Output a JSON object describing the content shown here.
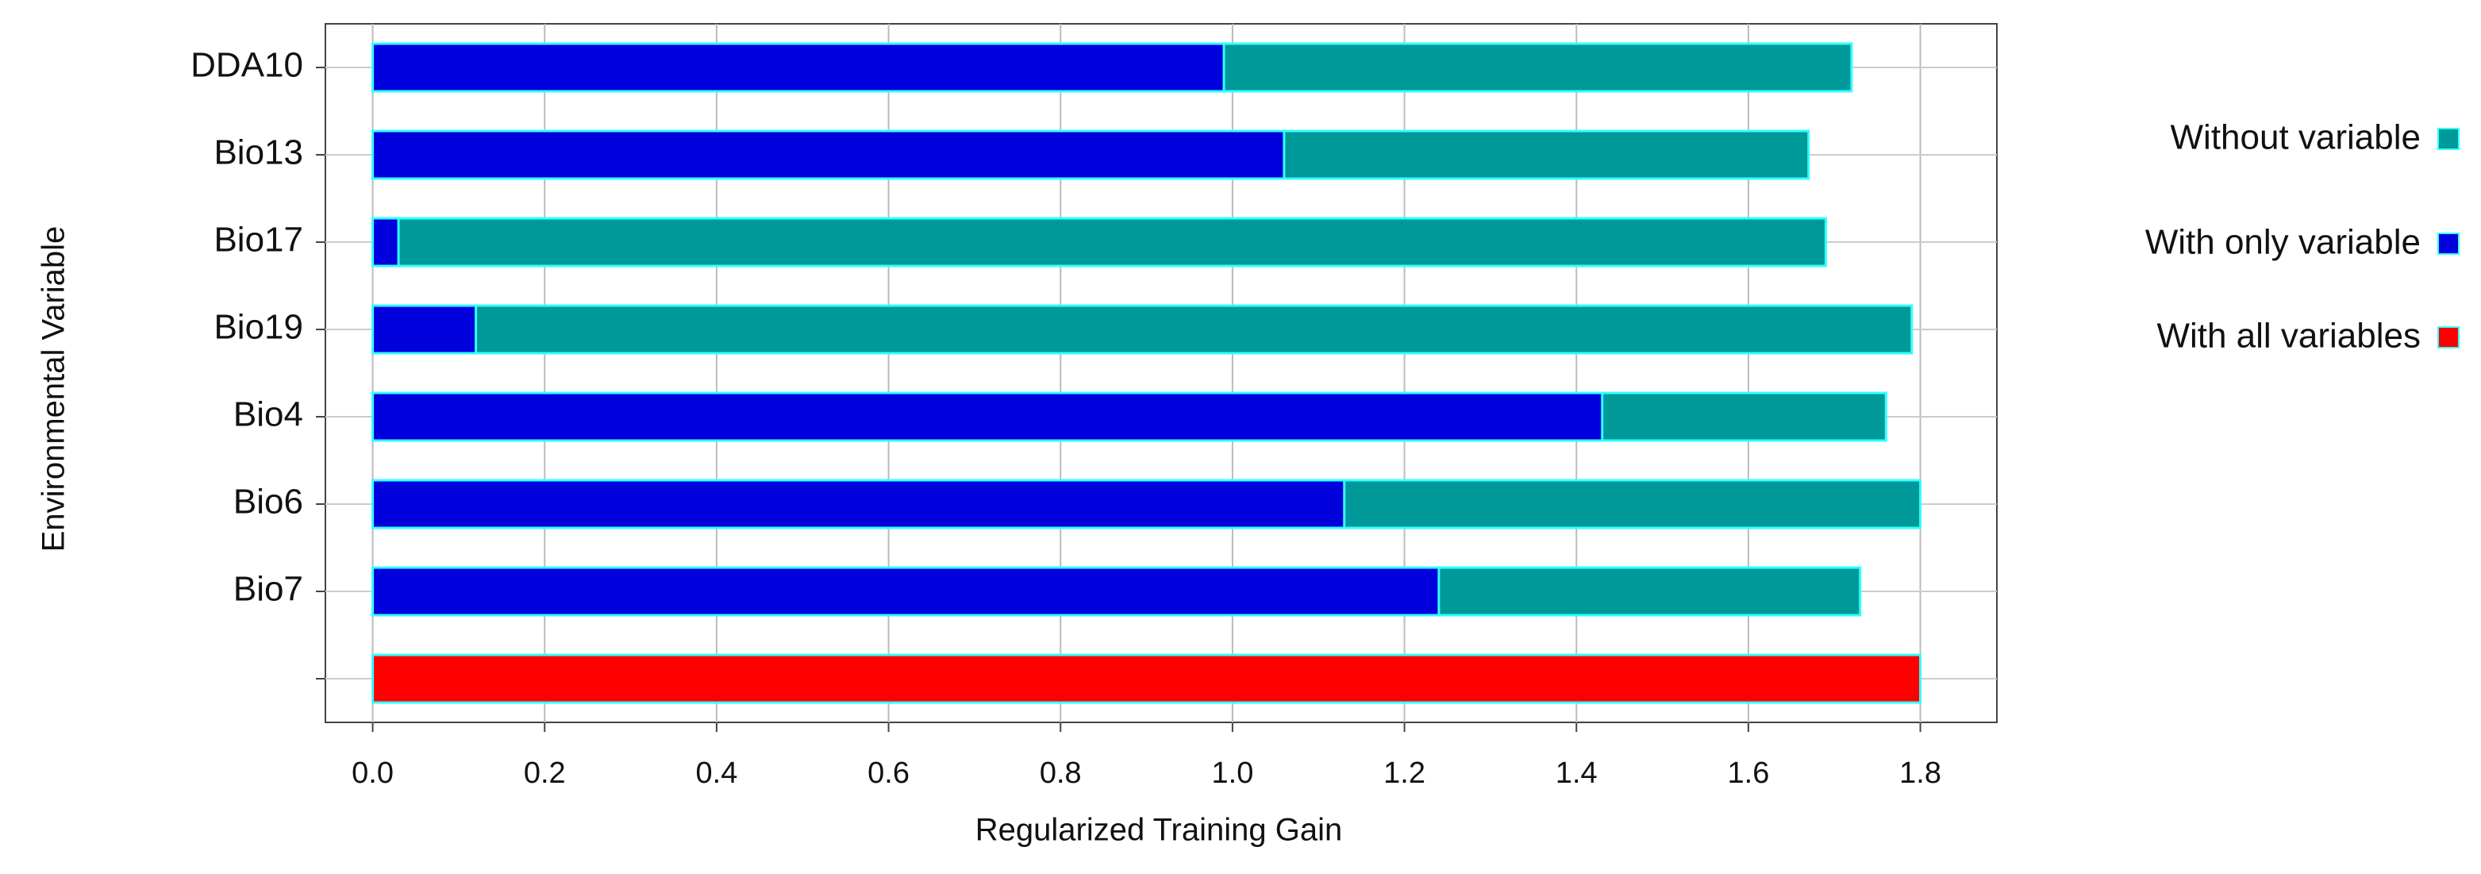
{
  "chart_data": {
    "type": "bar",
    "orientation": "horizontal",
    "overlap": true,
    "x_label": "Regularized Training Gain",
    "y_label": "Environmental Variable",
    "categories": [
      "DDA10",
      "Bio13",
      "Bio17",
      "Bio19",
      "Bio4",
      "Bio6",
      "Bio7",
      null
    ],
    "series": [
      {
        "name": "Without variable",
        "color": "#009999",
        "values": [
          1.72,
          1.67,
          1.69,
          1.79,
          1.76,
          1.8,
          1.73,
          null
        ]
      },
      {
        "name": "With only variable",
        "color": "#0000dd",
        "values": [
          0.99,
          1.06,
          0.03,
          0.12,
          1.43,
          1.13,
          1.24,
          null
        ]
      },
      {
        "name": "With all variables",
        "color": "#ff0000",
        "values": [
          null,
          null,
          null,
          null,
          null,
          null,
          null,
          1.8
        ]
      }
    ],
    "xlim": [
      -0.055,
      1.889
    ],
    "xticks": [
      {
        "value": 0,
        "label": "0.0"
      },
      0.2,
      0.4,
      0.6,
      0.8,
      {
        "value": 1,
        "label": "1.0"
      },
      1.2,
      1.4,
      1.6,
      1.8
    ],
    "grid": true,
    "legend": "right"
  }
}
